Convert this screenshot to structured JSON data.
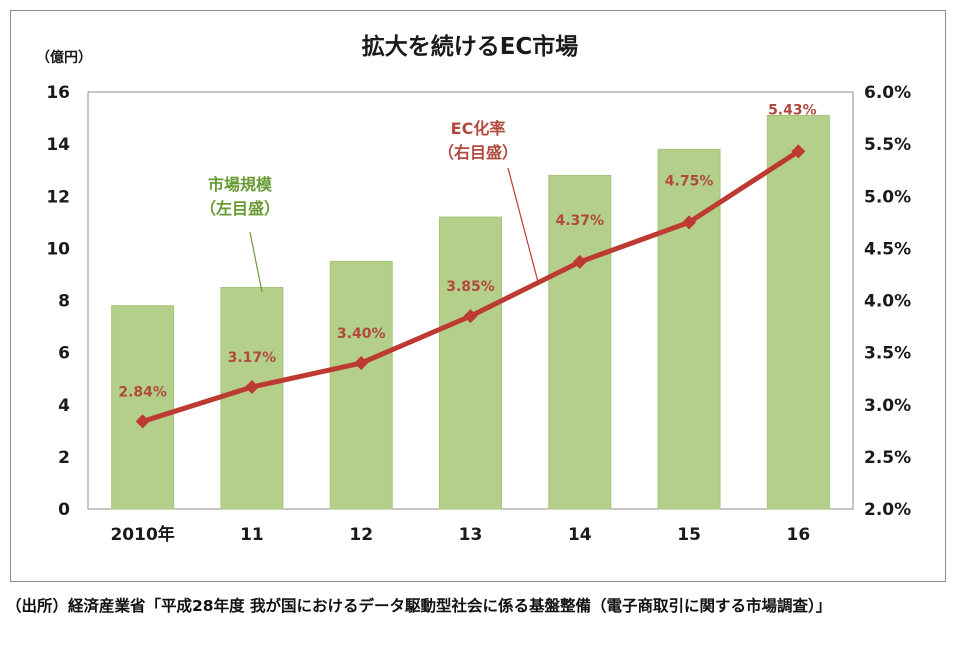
{
  "chart_data": {
    "type": "bar+line",
    "title": "拡大を続けるEC市場",
    "y_left_unit": "（億円）",
    "categories": [
      "2010年",
      "11",
      "12",
      "13",
      "14",
      "15",
      "16"
    ],
    "series": [
      {
        "name": "市場規模",
        "name_note": "（左目盛）",
        "type": "bar",
        "axis": "left",
        "color": "#b3cf8a",
        "values": [
          7.8,
          8.5,
          9.5,
          11.2,
          12.8,
          13.8,
          15.1
        ]
      },
      {
        "name": "EC化率",
        "name_note": "（右目盛）",
        "type": "line",
        "axis": "right",
        "color": "#bd3a33",
        "values": [
          2.84,
          3.17,
          3.4,
          3.85,
          4.37,
          4.75,
          5.43
        ],
        "labels": [
          "2.84%",
          "3.17%",
          "3.40%",
          "3.85%",
          "4.37%",
          "4.75%",
          "5.43%"
        ]
      }
    ],
    "y_left": {
      "min": 0,
      "max": 16,
      "step": 2,
      "ticks": [
        "0",
        "2",
        "4",
        "6",
        "8",
        "10",
        "12",
        "14",
        "16"
      ]
    },
    "y_right": {
      "min": 2.0,
      "max": 6.0,
      "step": 0.5,
      "ticks": [
        "2.0%",
        "2.5%",
        "3.0%",
        "3.5%",
        "4.0%",
        "4.5%",
        "5.0%",
        "5.5%",
        "6.0%"
      ]
    },
    "grid": false,
    "legend": "none (inline annotations)"
  },
  "source_note": "（出所）経済産業省「平成28年度 我が国におけるデータ駆動型社会に係る基盤整備（電子商取引に関する市場調査）」"
}
